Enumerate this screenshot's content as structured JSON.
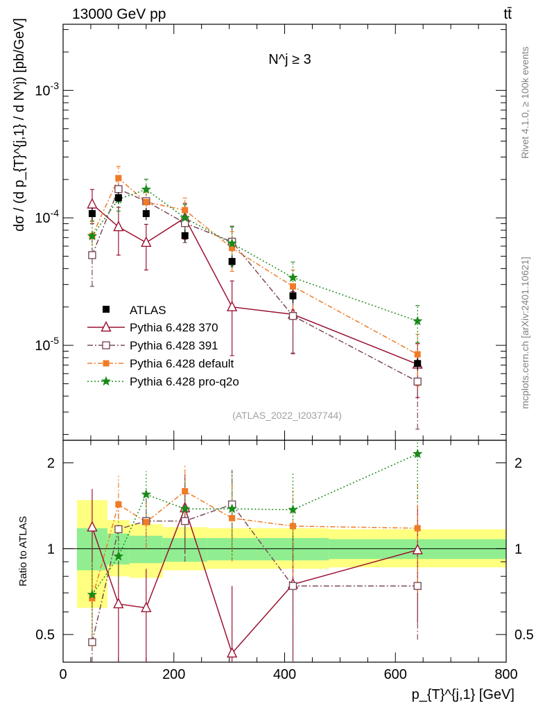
{
  "header": {
    "left": "13000 GeV pp",
    "right": "tt̄"
  },
  "side_texts": {
    "rivet": "Rivet 4.1.0, ≥ 100k events",
    "mcplots": "mcplots.cern.ch [arXiv:2401.10621]"
  },
  "chart_data": {
    "type": "line",
    "title": "N^j ≥ 3",
    "watermark": "(ATLAS_2022_I2037744)",
    "xlabel": "p_{T}^{j,1} [GeV]",
    "ylabel": "dσ / (d p_{T}^{j,1} / d N^j) [pb/GeV]",
    "ratio_ylabel": "Ratio to ATLAS",
    "xlim": [
      0,
      800
    ],
    "ylim": [
      1.8e-06,
      0.0033
    ],
    "ylog": true,
    "ratio_ylim": [
      0.4,
      2.4
    ],
    "ratio_ylog": true,
    "x_ticks": [
      "0",
      "200",
      "400",
      "600",
      "800"
    ],
    "y_ticks": [
      "10^{-5}",
      "10^{-4}",
      "10^{-3}"
    ],
    "ratio_ticks": [
      "0.5",
      "1",
      "2"
    ],
    "bins": [
      [
        25,
        80
      ],
      [
        80,
        120
      ],
      [
        120,
        180
      ],
      [
        180,
        260
      ],
      [
        260,
        350
      ],
      [
        350,
        480
      ],
      [
        480,
        800
      ]
    ],
    "band_outer": [
      [
        0.62,
        1.48
      ],
      [
        0.8,
        1.26
      ],
      [
        0.79,
        1.22
      ],
      [
        0.84,
        1.19
      ],
      [
        0.85,
        1.18
      ],
      [
        0.85,
        1.18
      ],
      [
        0.86,
        1.17
      ]
    ],
    "band_inner": [
      [
        0.84,
        1.18
      ],
      [
        0.88,
        1.13
      ],
      [
        0.89,
        1.11
      ],
      [
        0.9,
        1.09
      ],
      [
        0.91,
        1.09
      ],
      [
        0.91,
        1.09
      ],
      [
        0.92,
        1.08
      ]
    ],
    "x": [
      52.5,
      100,
      150,
      220,
      305,
      415,
      640
    ],
    "data": {
      "name": "ATLAS",
      "color": "#000000",
      "values": [
        0.000108,
        0.000144,
        0.000108,
        7.25e-05,
        4.55e-05,
        2.45e-05,
        7.2e-06
      ],
      "errors": [
        1.2e-05,
        1.5e-05,
        1.2e-05,
        8e-06,
        5e-06,
        3e-06,
        8e-07
      ]
    },
    "series": [
      {
        "name": "Pythia 6.428 370",
        "color": "#9a1030",
        "marker": "triangle",
        "dash": "",
        "values": [
          0.000128,
          8.5e-05,
          6.4e-05,
          0.0001,
          2e-05,
          1.75e-05,
          7.1e-06
        ],
        "err_lo": [
          9e-05,
          5.1e-05,
          3.9e-05,
          6.8e-05,
          8.3e-06,
          8.6e-06,
          3.9e-06
        ],
        "err_hi": [
          0.000167,
          0.000121,
          8.9e-05,
          0.00013,
          3.2e-05,
          2.65e-05,
          1.03e-05
        ],
        "ratio": [
          1.19,
          0.64,
          0.62,
          1.39,
          0.43,
          0.75,
          0.99
        ],
        "ratio_lo": [
          0.62,
          0.38,
          0.38,
          0.96,
          0.4,
          0.4,
          0.55
        ],
        "ratio_hi": [
          1.62,
          0.9,
          0.85,
          1.82,
          0.74,
          1.1,
          1.42
        ]
      },
      {
        "name": "Pythia 6.428 391",
        "color": "#7a4a5a",
        "marker": "square-open",
        "dash": "8,3,2,3",
        "values": [
          5.1e-05,
          0.000168,
          0.000135,
          9.1e-05,
          6.5e-05,
          1.7e-05,
          5.2e-06
        ],
        "err_lo": [
          2.9e-05,
          0.000138,
          0.000107,
          6.4e-05,
          4.4e-05,
          8.7e-06,
          2.2e-06
        ],
        "err_hi": [
          7.4e-05,
          0.000198,
          0.000163,
          0.000118,
          8.6e-05,
          2.53e-05,
          8.2e-06
        ],
        "ratio": [
          0.47,
          1.17,
          1.25,
          1.25,
          1.43,
          0.74,
          0.74
        ],
        "ratio_lo": [
          0.4,
          0.97,
          1.0,
          0.9,
          0.98,
          0.4,
          0.48
        ],
        "ratio_hi": [
          0.68,
          1.39,
          1.5,
          1.63,
          1.89,
          1.12,
          1.05
        ]
      },
      {
        "name": "Pythia 6.428 default",
        "color": "#f07b26",
        "marker": "square-filled",
        "dash": "7,3,2,3",
        "values": [
          7.2e-05,
          0.000205,
          0.000133,
          0.000115,
          5.8e-05,
          2.9e-05,
          8.5e-06
        ],
        "err_lo": [
          5e-05,
          0.000165,
          0.000108,
          8.7e-05,
          3.8e-05,
          1.9e-05,
          4.8e-06
        ],
        "err_hi": [
          9.5e-05,
          0.000253,
          0.000158,
          0.000143,
          7.8e-05,
          3.9e-05,
          1.22e-05
        ],
        "ratio": [
          0.67,
          1.43,
          1.24,
          1.59,
          1.28,
          1.2,
          1.18
        ],
        "ratio_lo": [
          0.45,
          1.17,
          1.0,
          1.2,
          0.9,
          0.8,
          0.7
        ],
        "ratio_hi": [
          0.9,
          1.8,
          1.5,
          1.98,
          1.71,
          1.6,
          1.7
        ]
      },
      {
        "name": "Pythia 6.428 pro-q2o",
        "color": "#1a8a1a",
        "marker": "star",
        "dash": "2,3",
        "values": [
          7.2e-05,
          0.00014,
          0.000167,
          0.0001,
          6.3e-05,
          3.4e-05,
          1.55e-05
        ],
        "err_lo": [
          5e-05,
          0.000113,
          0.000133,
          7.5e-05,
          4.2e-05,
          2.3e-05,
          1.05e-05
        ],
        "err_hi": [
          9.4e-05,
          0.000167,
          0.000201,
          0.000127,
          8.5e-05,
          4.5e-05,
          2.05e-05
        ],
        "ratio": [
          0.69,
          0.94,
          1.55,
          1.38,
          1.38,
          1.37,
          2.15
        ],
        "ratio_lo": [
          0.47,
          0.76,
          1.22,
          1.02,
          0.92,
          0.9,
          1.45
        ],
        "ratio_hi": [
          0.92,
          1.14,
          1.87,
          1.75,
          1.86,
          1.85,
          2.4
        ]
      }
    ]
  }
}
